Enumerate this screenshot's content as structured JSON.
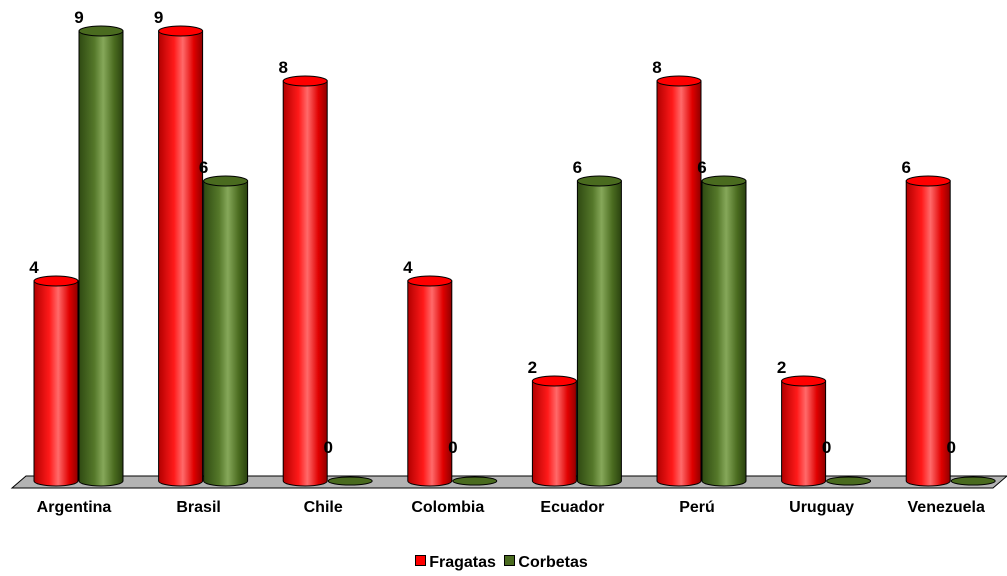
{
  "chart_data": {
    "type": "bar",
    "categories": [
      "Argentina",
      "Brasil",
      "Chile",
      "Colombia",
      "Ecuador",
      "Perú",
      "Uruguay",
      "Venezuela"
    ],
    "series": [
      {
        "name": "Fragatas",
        "values": [
          4,
          9,
          8,
          4,
          2,
          8,
          2,
          6
        ],
        "color": "#ff0000"
      },
      {
        "name": "Corbetas",
        "values": [
          9,
          6,
          0,
          0,
          6,
          6,
          0,
          0
        ],
        "color": "#4a6b1f"
      }
    ],
    "ylim": [
      0,
      9
    ],
    "legend_position": "bottom",
    "data_labels": true,
    "three_d": true
  },
  "legend": {
    "series0": "Fragatas",
    "series1": "Corbetas"
  }
}
